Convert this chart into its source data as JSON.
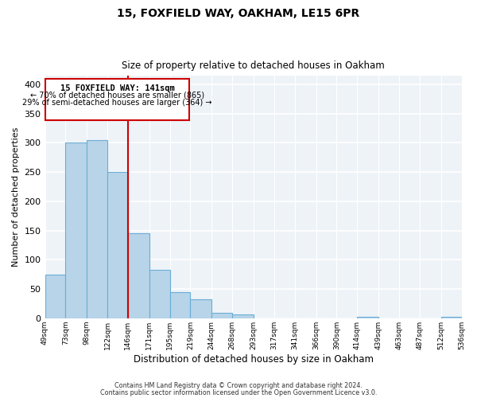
{
  "title": "15, FOXFIELD WAY, OAKHAM, LE15 6PR",
  "subtitle": "Size of property relative to detached houses in Oakham",
  "xlabel": "Distribution of detached houses by size in Oakham",
  "ylabel": "Number of detached properties",
  "bar_color": "#b8d4e8",
  "bar_edge_color": "#6aaed6",
  "annotation_text_line1": "15 FOXFIELD WAY: 141sqm",
  "annotation_text_line2": "← 70% of detached houses are smaller (865)",
  "annotation_text_line3": "29% of semi-detached houses are larger (364) →",
  "footer_line1": "Contains HM Land Registry data © Crown copyright and database right 2024.",
  "footer_line2": "Contains public sector information licensed under the Open Government Licence v3.0.",
  "bins": [
    49,
    73,
    98,
    122,
    146,
    171,
    195,
    219,
    244,
    268,
    293,
    317,
    341,
    366,
    390,
    414,
    439,
    463,
    487,
    512,
    536
  ],
  "counts": [
    75,
    300,
    305,
    250,
    145,
    83,
    44,
    32,
    9,
    6,
    0,
    0,
    0,
    0,
    0,
    2,
    0,
    0,
    0,
    2
  ],
  "ylim": [
    0,
    415
  ],
  "yticks": [
    0,
    50,
    100,
    150,
    200,
    250,
    300,
    350,
    400
  ],
  "red_line_color": "#cc0000",
  "box_edge_color": "#cc0000",
  "background_color": "#eef3f8"
}
